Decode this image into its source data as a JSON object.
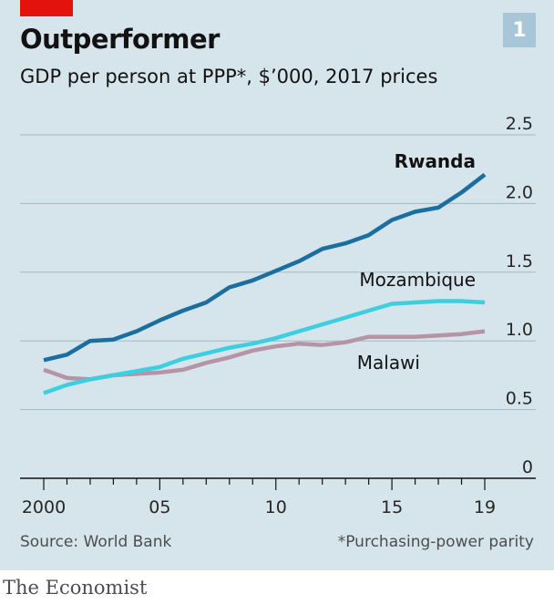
{
  "header": {
    "title": "Outperformer",
    "subtitle": "GDP per person at PPP*, $’000, 2017 prices",
    "chart_number": "1"
  },
  "footer": {
    "source": "Source: World Bank",
    "note": "*Purchasing-power parity",
    "brand": "The Economist"
  },
  "colors": {
    "background": "#d6e4ec",
    "rwanda": "#1a6f9e",
    "mozambique": "#3dcfe0",
    "malawi": "#b594a6",
    "grid": "#a4b8c5",
    "accent": "#e3120b"
  },
  "chart_data": {
    "type": "line",
    "title": "Outperformer",
    "subtitle": "GDP per person at PPP*, $’000, 2017 prices",
    "x": [
      2000,
      2001,
      2002,
      2003,
      2004,
      2005,
      2006,
      2007,
      2008,
      2009,
      2010,
      2011,
      2012,
      2013,
      2014,
      2015,
      2016,
      2017,
      2018,
      2019
    ],
    "x_ticks": [
      {
        "value": 2000,
        "label": "2000"
      },
      {
        "value": 2005,
        "label": "05"
      },
      {
        "value": 2010,
        "label": "10"
      },
      {
        "value": 2015,
        "label": "15"
      },
      {
        "value": 2019,
        "label": "19"
      }
    ],
    "xlim": [
      2000,
      2019
    ],
    "ylim": [
      0,
      2.5
    ],
    "y_ticks": [
      {
        "value": 0,
        "label": "0"
      },
      {
        "value": 0.5,
        "label": "0.5"
      },
      {
        "value": 1.0,
        "label": "1.0"
      },
      {
        "value": 1.5,
        "label": "1.5"
      },
      {
        "value": 2.0,
        "label": "2.0"
      },
      {
        "value": 2.5,
        "label": "2.5"
      }
    ],
    "grid": true,
    "series": [
      {
        "name": "Rwanda",
        "color": "#1a6f9e",
        "values": [
          0.86,
          0.9,
          1.0,
          1.01,
          1.07,
          1.15,
          1.22,
          1.28,
          1.39,
          1.44,
          1.51,
          1.58,
          1.67,
          1.71,
          1.77,
          1.88,
          1.94,
          1.97,
          2.08,
          2.21
        ]
      },
      {
        "name": "Mozambique",
        "color": "#3dcfe0",
        "values": [
          0.62,
          0.68,
          0.72,
          0.75,
          0.78,
          0.81,
          0.87,
          0.91,
          0.95,
          0.98,
          1.02,
          1.07,
          1.12,
          1.17,
          1.22,
          1.27,
          1.28,
          1.29,
          1.29,
          1.28
        ]
      },
      {
        "name": "Malawi",
        "color": "#b594a6",
        "values": [
          0.79,
          0.73,
          0.72,
          0.75,
          0.76,
          0.77,
          0.79,
          0.84,
          0.88,
          0.93,
          0.96,
          0.98,
          0.97,
          0.99,
          1.03,
          1.03,
          1.03,
          1.04,
          1.05,
          1.07
        ]
      }
    ]
  }
}
